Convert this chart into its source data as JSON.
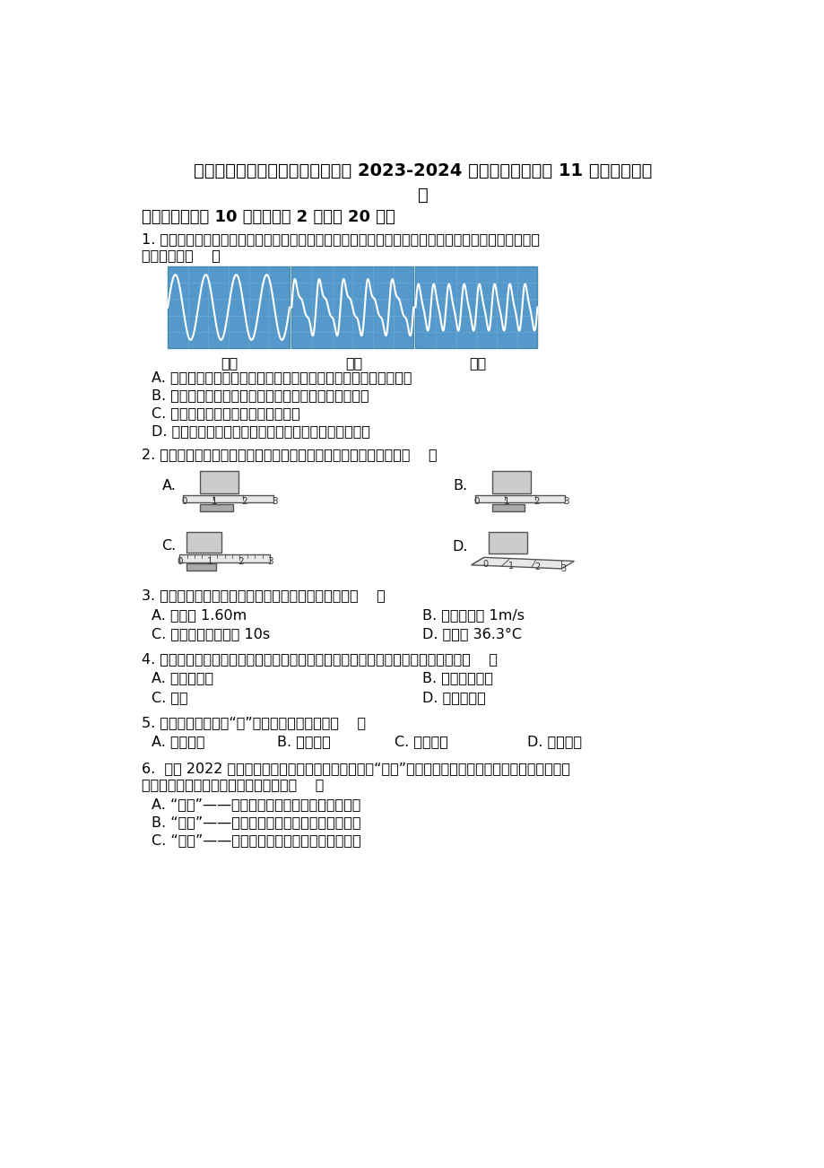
{
  "title_line1": "吉林省长春市榆树市北片部分学校 2023-2024 学年八年级上学期 11 月月考物理试",
  "title_line2": "题",
  "bg_color": "#ffffff",
  "text_color": "#000000",
  "section1_title": "一、选择题（共 10 小题，每题 2 分，共 20 分）",
  "q1_line1": "1. 如图分别是音叉、钢琴、长笛发出的声音在示波器上显示的波形。下面关于三者发出声音的特性描述",
  "q1_line2": "不正确的是（    ）",
  "q1_options": [
    "A. 三种不同乐器发出的波形总体上疏密程度是相同的，即音调相同",
    "B. 三种不同乐器发出声波的响度、音调和音色都不相同",
    "C. 三种波形的形状不同，即音色不同",
    "D. 发声体的材料、结构不同，发出声音的音色也就不同"
  ],
  "waveform_labels": [
    "音叉",
    "钢琴",
    "长笛"
  ],
  "q2_text": "2. 如图所示用厚刻度尺测量木块的长度，下列各种做法中正确的是（    ）",
  "q3_text": "3. 以下是某同学对自身情况的估测，其中不合理的是（    ）",
  "q3_options_left": [
    "A. 身高约 1.60m",
    "C. 眨一次眼的时间约 10s"
  ],
  "q3_options_right": [
    "B. 步行速度约 1m/s",
    "D. 体温约 36.3°C"
  ],
  "q4_text": "4. 小彭从飞机上跳下做跳伞运动，他感觉到自己静止不动，他选取的参照物可能是（    ）",
  "q4_options_left": [
    "A. 静止的飞机",
    "C. 地面"
  ],
  "q4_options_right": [
    "B. 张开的降落伞",
    "D. 静止的云层"
  ],
  "q5_text": "5. 以下各场景中关于“高”的描述属于音调的是（    ）",
  "q5_options": [
    "A. 曲高和寡",
    "B. 引吭高歌",
    "C. 振臂高呼",
    "D. 高谈阔论"
  ],
  "q6_line1": "6.  北京 2022 年冬奥会开幕日恰逢我国二十四节气的“立春”，倒计时以二十四节气为序，惊艳世界。以",
  "q6_line2": "下节气中蕴含的物态变化知识正确的是（    ）",
  "q6_options": [
    "A. “雨水”——雨的形成是液化现象，要吸收热量",
    "B. “寒露”——露的形成是汽化现象，要放出热量",
    "C. “霜降”——霜的形成是凝华现象，要放出热量"
  ]
}
